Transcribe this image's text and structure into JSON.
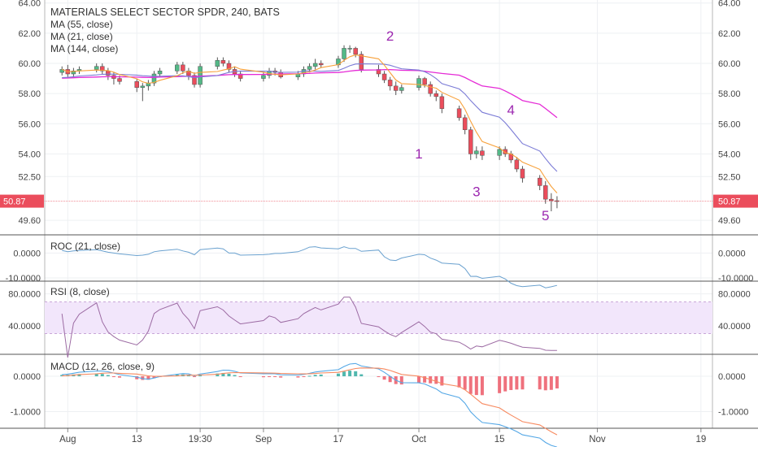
{
  "chart_data": {
    "type": "candlestick",
    "title": "MATERIALS SELECT SECTOR SPDR, 240, BATS",
    "legend": [
      "MA (55, close)",
      "MA (21, close)",
      "MA (144, close)"
    ],
    "colors": {
      "up": "#53b987",
      "down": "#eb4d5c",
      "ma21": "#f7a13b",
      "ma55": "#7b7bd6",
      "ma144": "#e52bd6",
      "roc": "#6aa1cf",
      "rsi": "#9c6ba3",
      "rsi_band": "#f2e6fb",
      "macd": "#55a8e6",
      "signal": "#f78a60",
      "wave_label": "#9c27b0",
      "price_tag": "#eb4d5c"
    },
    "last_price": "50.87",
    "x_axis": {
      "labels": [
        "Aug",
        "13",
        "19:30",
        "Sep",
        "17",
        "Oct",
        "15",
        "Nov",
        "19"
      ],
      "dates": [
        "2018-08-01",
        "2018-08-13",
        "2018-08-24",
        "2018-09-04",
        "2018-09-17",
        "2018-10-01",
        "2018-10-15",
        "2018-11-01",
        "2018-11-19"
      ]
    },
    "price_axis": {
      "ticks": [
        "64.00",
        "62.00",
        "60.00",
        "58.00",
        "56.00",
        "54.00",
        "52.50",
        "49.60"
      ],
      "ylim": [
        48.8,
        64.2
      ]
    },
    "wave_labels": [
      {
        "text": "2",
        "date": "2018-09-26",
        "price": 61.5
      },
      {
        "text": "1",
        "date": "2018-10-01",
        "price": 53.7
      },
      {
        "text": "4",
        "date": "2018-10-17",
        "price": 56.6
      },
      {
        "text": "3",
        "date": "2018-10-11",
        "price": 51.2
      },
      {
        "text": "5",
        "date": "2018-10-23",
        "price": 49.6
      }
    ],
    "candles": {
      "dates": [
        "2018-07-31",
        "2018-08-01",
        "2018-08-02",
        "2018-08-03",
        "2018-08-06",
        "2018-08-07",
        "2018-08-08",
        "2018-08-09",
        "2018-08-10",
        "2018-08-13",
        "2018-08-14",
        "2018-08-15",
        "2018-08-16",
        "2018-08-17",
        "2018-08-20",
        "2018-08-21",
        "2018-08-22",
        "2018-08-23",
        "2018-08-24",
        "2018-08-27",
        "2018-08-28",
        "2018-08-29",
        "2018-08-30",
        "2018-08-31",
        "2018-09-04",
        "2018-09-05",
        "2018-09-06",
        "2018-09-07",
        "2018-09-10",
        "2018-09-11",
        "2018-09-12",
        "2018-09-13",
        "2018-09-14",
        "2018-09-17",
        "2018-09-18",
        "2018-09-19",
        "2018-09-20",
        "2018-09-21",
        "2018-09-24",
        "2018-09-25",
        "2018-09-26",
        "2018-09-27",
        "2018-09-28",
        "2018-10-01",
        "2018-10-02",
        "2018-10-03",
        "2018-10-04",
        "2018-10-05",
        "2018-10-08",
        "2018-10-09",
        "2018-10-10",
        "2018-10-11",
        "2018-10-12",
        "2018-10-15",
        "2018-10-16",
        "2018-10-17",
        "2018-10-18",
        "2018-10-19",
        "2018-10-22",
        "2018-10-23",
        "2018-10-24",
        "2018-10-25"
      ],
      "open": [
        59.4,
        59.6,
        59.3,
        59.5,
        59.6,
        59.8,
        59.5,
        59.2,
        59.0,
        58.8,
        58.4,
        58.5,
        58.7,
        59.3,
        59.5,
        59.9,
        59.5,
        59.2,
        58.6,
        59.8,
        60.2,
        60.0,
        59.6,
        59.3,
        59.0,
        59.2,
        59.5,
        59.4,
        59.1,
        59.3,
        59.6,
        59.8,
        60.0,
        59.9,
        60.3,
        61.0,
        61.0,
        60.6,
        59.6,
        59.3,
        58.9,
        58.5,
        58.2,
        58.4,
        59.0,
        58.6,
        58.0,
        57.8,
        57.0,
        56.4,
        55.6,
        54.0,
        54.2,
        53.9,
        54.3,
        54.0,
        53.6,
        53.0,
        52.4,
        51.9,
        51.0,
        50.9
      ],
      "close": [
        59.6,
        59.3,
        59.5,
        59.6,
        59.8,
        59.5,
        59.2,
        59.0,
        58.8,
        58.4,
        58.5,
        58.7,
        59.3,
        59.5,
        59.9,
        59.5,
        59.2,
        58.6,
        59.8,
        60.2,
        60.0,
        59.6,
        59.3,
        59.0,
        59.2,
        59.5,
        59.4,
        59.1,
        59.3,
        59.6,
        59.8,
        60.0,
        59.9,
        60.3,
        61.0,
        61.0,
        60.6,
        59.6,
        59.3,
        58.9,
        58.5,
        58.2,
        58.4,
        59.0,
        58.6,
        58.0,
        57.8,
        57.0,
        56.4,
        55.6,
        54.0,
        54.2,
        53.9,
        54.3,
        54.0,
        53.6,
        53.0,
        52.4,
        51.9,
        51.0,
        50.9,
        50.87
      ],
      "high": [
        59.8,
        59.9,
        59.7,
        59.8,
        60.0,
        60.0,
        59.7,
        59.4,
        59.2,
        59.0,
        58.7,
        58.9,
        59.5,
        59.7,
        60.1,
        60.1,
        59.7,
        59.4,
        60.0,
        60.4,
        60.4,
        60.2,
        59.8,
        59.5,
        59.4,
        59.7,
        59.7,
        59.6,
        59.5,
        59.8,
        60.0,
        60.3,
        60.2,
        60.5,
        61.2,
        61.2,
        61.1,
        60.8,
        59.9,
        59.5,
        59.1,
        58.8,
        58.6,
        59.2,
        59.1,
        58.8,
        58.2,
        58.0,
        57.2,
        56.6,
        55.8,
        54.5,
        54.5,
        54.5,
        54.5,
        54.2,
        53.8,
        53.2,
        52.6,
        52.2,
        51.4,
        51.2
      ],
      "low": [
        59.2,
        59.1,
        59.1,
        59.3,
        59.4,
        59.3,
        58.9,
        58.6,
        58.6,
        58.1,
        57.5,
        58.2,
        58.5,
        59.1,
        59.3,
        59.3,
        58.9,
        58.4,
        58.4,
        59.6,
        59.8,
        59.4,
        59.1,
        58.8,
        58.8,
        59.0,
        59.2,
        59.0,
        58.9,
        59.1,
        59.4,
        59.6,
        59.7,
        59.7,
        60.1,
        60.7,
        60.4,
        59.4,
        59.1,
        58.7,
        58.2,
        57.9,
        58.0,
        58.2,
        58.4,
        57.8,
        57.5,
        56.7,
        56.2,
        55.3,
        53.6,
        53.7,
        53.6,
        53.6,
        53.8,
        53.4,
        52.8,
        52.1,
        51.6,
        50.7,
        50.2,
        50.4
      ]
    },
    "indicators": [
      {
        "name": "ROC (21, close)",
        "ticks": [
          "0.0000",
          "-10.0000"
        ],
        "ylim": [
          -11,
          7
        ]
      },
      {
        "name": "RSI (8, close)",
        "ticks": [
          "80.0000",
          "40.0000"
        ],
        "band": [
          30,
          70
        ],
        "ylim": [
          5,
          95
        ]
      },
      {
        "name": "MACD (12, 26, close, 9)",
        "ticks": [
          "0.0000",
          "-1.0000"
        ],
        "ylim": [
          -1.45,
          0.6
        ]
      }
    ]
  }
}
